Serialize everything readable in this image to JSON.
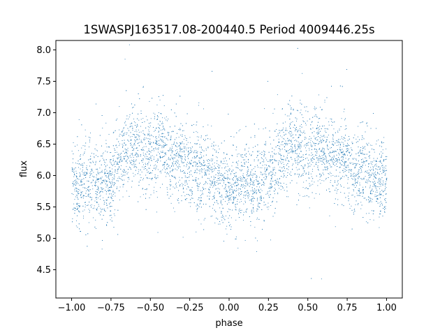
{
  "chart_data": {
    "type": "scatter",
    "title": "1SWASPJ163517.08-200440.5 Period 4009446.25s",
    "xlabel": "phase",
    "ylabel": "flux",
    "xlim": [
      -1.1,
      1.1
    ],
    "ylim": [
      4.05,
      8.15
    ],
    "xticks": [
      -1.0,
      -0.75,
      -0.5,
      -0.25,
      0.0,
      0.25,
      0.5,
      0.75,
      1.0
    ],
    "xtick_labels": [
      "−1.00",
      "−0.75",
      "−0.50",
      "−0.25",
      "0.00",
      "0.25",
      "0.50",
      "0.75",
      "1.00"
    ],
    "yticks": [
      4.5,
      5.0,
      5.5,
      6.0,
      6.5,
      7.0,
      7.5,
      8.0
    ],
    "ytick_labels": [
      "4.5",
      "5.0",
      "5.5",
      "6.0",
      "6.5",
      "7.0",
      "7.5",
      "8.0"
    ],
    "grid": false,
    "legend": "none",
    "marker_color": "#1f77b4",
    "series": [
      {
        "x": [
          -1.0,
          -0.95,
          -0.9,
          -0.85,
          -0.8,
          -0.75,
          -0.7,
          -0.65,
          -0.6,
          -0.55,
          -0.5,
          -0.45,
          -0.4,
          -0.35,
          -0.3,
          -0.25,
          -0.2,
          -0.15,
          -0.1,
          -0.05,
          0.0,
          0.05,
          0.1,
          0.15,
          0.2,
          0.25,
          0.3,
          0.35,
          0.4,
          0.45,
          0.5,
          0.55,
          0.6,
          0.65,
          0.7,
          0.75,
          0.8,
          0.85,
          0.9,
          0.95,
          1.0
        ],
        "y": [
          5.9,
          5.85,
          5.9,
          5.85,
          5.85,
          5.95,
          6.2,
          6.45,
          6.55,
          6.4,
          6.3,
          6.5,
          6.35,
          6.25,
          6.25,
          6.15,
          6.1,
          6.05,
          5.95,
          5.85,
          5.85,
          5.8,
          5.9,
          5.85,
          5.9,
          6.0,
          6.2,
          6.35,
          6.5,
          6.45,
          6.3,
          6.55,
          6.4,
          6.3,
          6.3,
          6.2,
          6.1,
          6.05,
          5.95,
          5.9,
          5.9
        ],
        "scatter_spread": 0.32
      }
    ]
  }
}
